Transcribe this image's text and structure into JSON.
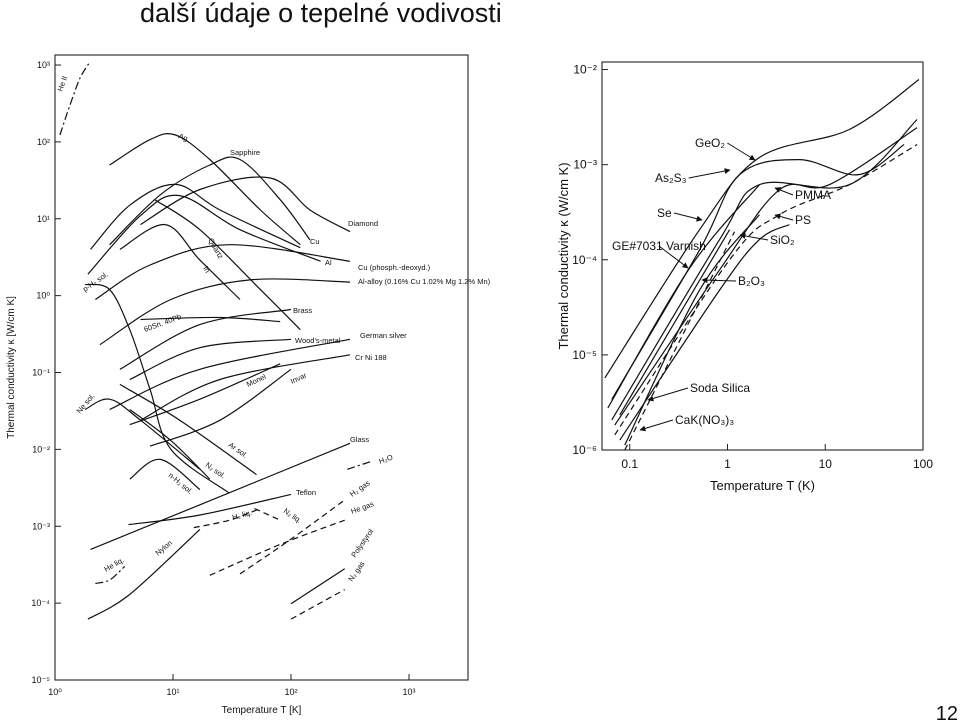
{
  "slide": {
    "title": "další údaje o tepelné vodivosti",
    "page_number": 12
  },
  "chart_data": [
    {
      "type": "line",
      "color": "#111111",
      "xscale": "log",
      "yscale": "log",
      "xlabel": "Temperature T [K]",
      "ylabel": "Thermal conductivity κ [W/cm K]",
      "xlim": [
        1,
        3162
      ],
      "ylim": [
        1e-05,
        1350
      ],
      "xticks": [
        {
          "value": 1,
          "label": "10⁰"
        },
        {
          "value": 10,
          "label": "10¹"
        },
        {
          "value": 100,
          "label": "10²"
        },
        {
          "value": 1000,
          "label": "10³"
        }
      ],
      "yticks": [
        {
          "value": 1000,
          "label": "10³"
        },
        {
          "value": 100,
          "label": "10²"
        },
        {
          "value": 10,
          "label": "10¹"
        },
        {
          "value": 1,
          "label": "10⁰"
        },
        {
          "value": 0.1,
          "label": "10⁻¹"
        },
        {
          "value": 0.01,
          "label": "10⁻²"
        },
        {
          "value": 0.001,
          "label": "10⁻³"
        },
        {
          "value": 0.0001,
          "label": "10⁻⁴"
        },
        {
          "value": 1e-05,
          "label": "10⁻⁵"
        }
      ],
      "series": [
        {
          "name": "He II",
          "style": "dashdot",
          "x": [
            1.1,
            1.34,
            1.63,
            1.98
          ],
          "values": [
            123,
            302,
            676,
            1100
          ]
        },
        {
          "name": "Ag",
          "style": "solid",
          "x": [
            2.9,
            6.4,
            10.5,
            20.5,
            55,
            120
          ],
          "values": [
            50,
            107,
            123,
            59,
            13,
            4.6
          ]
        },
        {
          "name": "Sapphire",
          "style": "solid",
          "x": [
            2.9,
            7.8,
            20.5,
            37,
            81,
            145
          ],
          "values": [
            4.6,
            20.5,
            50,
            59,
            17.7,
            5.3
          ]
        },
        {
          "name": "Diamond",
          "style": "solid",
          "x": [
            5.3,
            16.9,
            66,
            145,
            316
          ],
          "values": [
            8.4,
            24,
            34,
            13,
            6.8
          ]
        },
        {
          "name": "Cu",
          "style": "solid",
          "x": [
            2,
            4.3,
            10.5,
            25,
            120
          ],
          "values": [
            4,
            15,
            28,
            13,
            4.2
          ]
        },
        {
          "name": "Al",
          "style": "solid",
          "x": [
            1.9,
            5.3,
            11.4,
            37,
            178
          ],
          "values": [
            1.9,
            11,
            20,
            7.2,
            2.8
          ]
        },
        {
          "name": "Quartz",
          "style": "solid",
          "x": [
            7,
            16.9,
            55,
            120
          ],
          "values": [
            17.7,
            7.2,
            1.2,
            0.36
          ]
        },
        {
          "name": "In",
          "style": "solid",
          "x": [
            3.55,
            8.6,
            16.9,
            37
          ],
          "values": [
            4,
            8.4,
            2.9,
            0.89
          ]
        },
        {
          "name": "Cu (phosph.-deoxyd.)",
          "style": "solid",
          "x": [
            2.2,
            6.4,
            30,
            316
          ],
          "values": [
            0.89,
            2.5,
            4.6,
            2.8
          ]
        },
        {
          "name": "Al-alloy (0.16% Cu 1.02% Mg 1.2% Mn)",
          "style": "solid",
          "x": [
            2.4,
            9.6,
            45,
            316
          ],
          "values": [
            0.23,
            0.89,
            1.6,
            1.5
          ]
        },
        {
          "name": "Brass",
          "style": "solid",
          "x": [
            3.55,
            16.9,
            100
          ],
          "values": [
            0.11,
            0.42,
            0.66
          ]
        },
        {
          "name": "60Sn. 40Pb",
          "style": "solid",
          "x": [
            5.3,
            25,
            81
          ],
          "values": [
            0.49,
            0.52,
            0.46
          ]
        },
        {
          "name": "Wood's-metal",
          "style": "solid",
          "x": [
            4.3,
            16.9,
            100
          ],
          "values": [
            0.081,
            0.21,
            0.27
          ]
        },
        {
          "name": "German silver",
          "style": "solid",
          "x": [
            2.9,
            16.9,
            316
          ],
          "values": [
            0.033,
            0.11,
            0.27
          ]
        },
        {
          "name": "Cr Ni 188",
          "style": "solid",
          "x": [
            5.3,
            25,
            316
          ],
          "values": [
            0.024,
            0.081,
            0.17
          ]
        },
        {
          "name": "Monel",
          "style": "solid",
          "x": [
            4.3,
            16.9,
            81
          ],
          "values": [
            0.021,
            0.045,
            0.13
          ]
        },
        {
          "name": "Invar",
          "style": "solid",
          "x": [
            6.4,
            25,
            100
          ],
          "values": [
            0.011,
            0.024,
            0.11
          ]
        },
        {
          "name": "p-H₂ sol.",
          "style": "solid",
          "x": [
            1.8,
            2.9,
            4.3,
            6.4,
            9.6,
            30
          ],
          "values": [
            1.4,
            1.2,
            0.36,
            0.06,
            0.01,
            0.0027
          ]
        },
        {
          "name": "Ne sol.",
          "style": "solid",
          "x": [
            1.8,
            2.9,
            5.3,
            16.9
          ],
          "values": [
            0.033,
            0.045,
            0.024,
            0.0055
          ]
        },
        {
          "name": "Ar sol.",
          "style": "solid",
          "x": [
            3.55,
            11.4,
            51
          ],
          "values": [
            0.07,
            0.024,
            0.0047
          ]
        },
        {
          "name": "N₂ sol.",
          "style": "solid",
          "x": [
            4.3,
            9.6,
            20.5
          ],
          "values": [
            0.033,
            0.013,
            0.0041
          ]
        },
        {
          "name": "n-H₂ sol.",
          "style": "solid",
          "x": [
            4.3,
            7.8,
            16.9
          ],
          "values": [
            0.0041,
            0.0074,
            0.003
          ]
        },
        {
          "name": "Glass",
          "style": "solid",
          "x": [
            2,
            16.9,
            316
          ],
          "values": [
            0.0005,
            0.0019,
            0.012
          ]
        },
        {
          "name": "H₂O",
          "style": "dashdot",
          "x": [
            300,
            468
          ],
          "values": [
            0.0055,
            0.0069
          ]
        },
        {
          "name": "Teflon",
          "style": "solid",
          "x": [
            4.2,
            16.9,
            100
          ],
          "values": [
            0.00105,
            0.0014,
            0.0026
          ]
        },
        {
          "name": "H₂ liq.",
          "style": "dashed",
          "x": [
            15,
            30,
            55
          ],
          "values": [
            0.00096,
            0.0012,
            0.0017
          ]
        },
        {
          "name": "N₂ liq.",
          "style": "dashed",
          "x": [
            49,
            81
          ],
          "values": [
            0.0017,
            0.0012
          ]
        },
        {
          "name": "H₂ gas",
          "style": "dashed",
          "x": [
            37,
            100,
            285
          ],
          "values": [
            0.00024,
            0.00068,
            0.0022
          ]
        },
        {
          "name": "He gas",
          "style": "dashed",
          "x": [
            20.5,
            81,
            285
          ],
          "values": [
            0.00023,
            0.00058,
            0.0012
          ]
        },
        {
          "name": "He liq.",
          "style": "dashdot",
          "x": [
            2.2,
            2.9,
            3.9
          ],
          "values": [
            0.00018,
            0.0002,
            0.0003
          ]
        },
        {
          "name": "Nylon",
          "style": "solid",
          "x": [
            1.9,
            4.3,
            16.9
          ],
          "values": [
            6.2e-05,
            0.00013,
            0.00091
          ]
        },
        {
          "name": "Polystyrol",
          "style": "solid",
          "x": [
            100,
            285
          ],
          "values": [
            9.8e-05,
            0.00028
          ]
        },
        {
          "name": "N₂ gas",
          "style": "dashed",
          "x": [
            100,
            285
          ],
          "values": [
            6.2e-05,
            0.00015
          ]
        }
      ]
    },
    {
      "type": "line",
      "color": "#111111",
      "xscale": "log",
      "yscale": "log",
      "xlabel": "Temperature T (K)",
      "ylabel": "Thermal conductivity κ (W/cm K)",
      "xlim": [
        0.052,
        100
      ],
      "ylim": [
        1e-06,
        0.012
      ],
      "xticks": [
        0.1,
        1,
        10,
        100
      ],
      "yticks": [
        {
          "value": 0.01,
          "label": "10⁻²"
        },
        {
          "value": 0.001,
          "label": "10⁻³"
        },
        {
          "value": 0.0001,
          "label": "10⁻⁴"
        },
        {
          "value": 1e-05,
          "label": "10⁻⁵"
        },
        {
          "value": 1e-06,
          "label": "10⁻⁶"
        }
      ],
      "series": [
        {
          "name": "GeO₂",
          "style": "solid",
          "x": [
            0.0556,
            0.518,
            2.12,
            17.6,
            91
          ],
          "values": [
            5.7e-06,
            0.000207,
            0.00119,
            0.00234,
            0.00785
          ]
        },
        {
          "name": "As₂S₃",
          "style": "solid",
          "x": [
            0.0655,
            0.518,
            1.33,
            5.4,
            22,
            64
          ],
          "values": [
            3.4e-06,
            0.000127,
            0.000785,
            0.00113,
            0.000785,
            0.00163
          ]
        },
        {
          "name": "Se",
          "style": "solid",
          "x": [
            0.0655,
            0.83,
            2.12,
            17.6,
            87
          ],
          "values": [
            2.07e-06,
            0.000163,
            0.000615,
            0.000615,
            0.00298
          ]
        },
        {
          "name": "PMMA",
          "style": "solid",
          "x": [
            0.0703,
            0.83,
            3.4,
            11,
            87
          ],
          "values": [
            1.83e-06,
            7.85e-05,
            0.000545,
            0.000615,
            0.00245
          ]
        },
        {
          "name": "PS",
          "style": "dashed",
          "x": [
            0.0703,
            1.05,
            3.4,
            17.6,
            87
          ],
          "values": [
            1.44e-06,
            0.0001,
            0.000298,
            0.000615,
            0.00163
          ]
        },
        {
          "name": "SiO₂",
          "style": "solid",
          "x": [
            0.079,
            0.83,
            2.12,
            4.3
          ],
          "values": [
            1.27e-06,
            4.8e-05,
            0.000163,
            0.000234
          ]
        },
        {
          "name": "GE#7031 Varnish",
          "style": "solid",
          "x": [
            0.0597,
            0.41,
            2.12
          ],
          "values": [
            2.77e-06,
            8.2e-05,
            0.000615
          ]
        },
        {
          "name": "B₂O₃",
          "style": "solid",
          "x": [
            0.089,
            0.518,
            2.12
          ],
          "values": [
            1.13e-06,
            4.8e-05,
            0.000298
          ]
        },
        {
          "name": "Soda Silica",
          "style": "solid",
          "x": [
            0.079,
            1.05
          ],
          "values": [
            2.34e-06,
            0.000207
          ]
        },
        {
          "name": "CaK(NO₃)₃",
          "style": "dashed",
          "x": [
            0.089,
            1.18
          ],
          "values": [
            1e-06,
            0.000197
          ]
        }
      ]
    }
  ]
}
